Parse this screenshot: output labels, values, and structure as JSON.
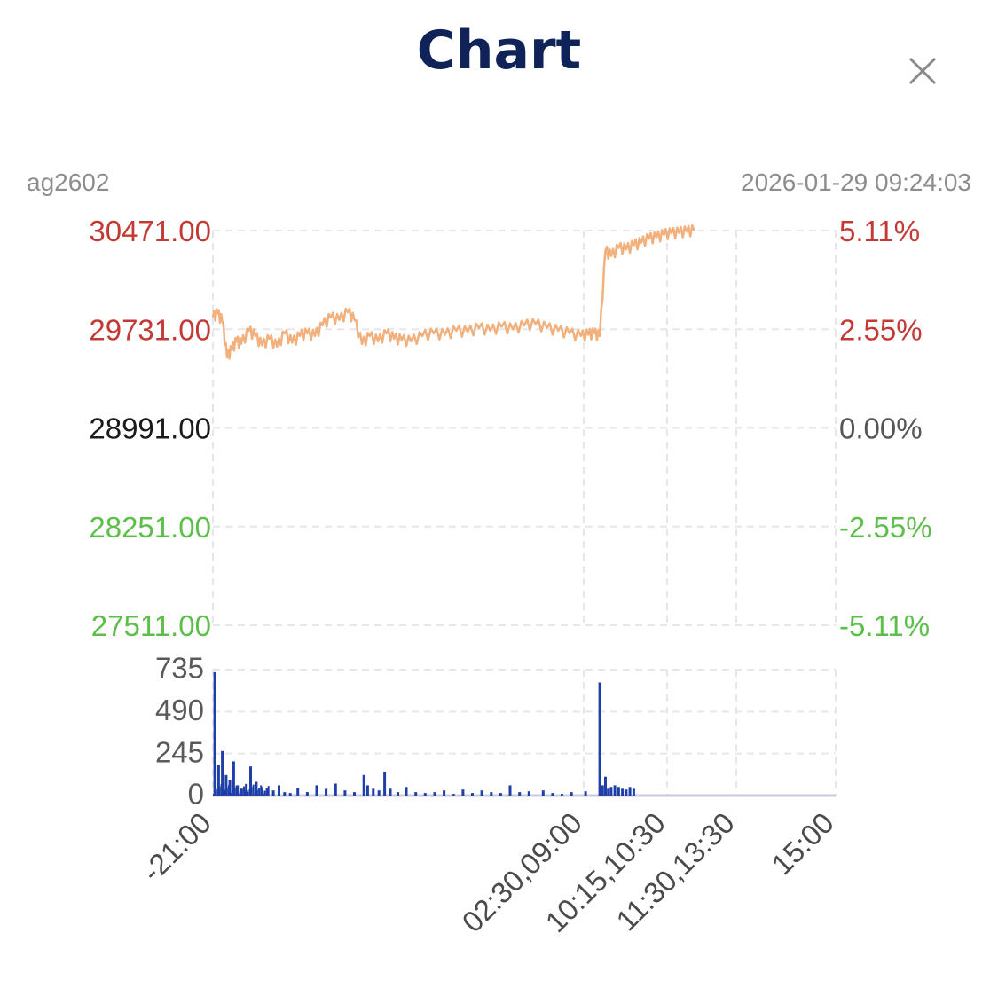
{
  "header": {
    "title": "Chart",
    "close_icon": "close-icon"
  },
  "info": {
    "symbol": "ag2602",
    "timestamp": "2026-01-29 09:24:03"
  },
  "colors": {
    "up": "#c33a34",
    "down": "#5cbf4a",
    "neutral": "#1a1a1a",
    "price_line": "#f2b07c",
    "volume": "#1f3fa8",
    "grid": "#e6e6ef"
  },
  "chart_data": {
    "type": "line",
    "price_axis_labels": [
      "30471.00",
      "29731.00",
      "28991.00",
      "28251.00",
      "27511.00"
    ],
    "percent_axis_labels": [
      "5.11%",
      "2.55%",
      "0.00%",
      "-2.55%",
      "-5.11%"
    ],
    "price_axis_colors": [
      "up",
      "up",
      "neutral",
      "down",
      "down"
    ],
    "ylim": [
      27511,
      30471
    ],
    "reference_price": 28991,
    "volume_axis_labels": [
      "735",
      "490",
      "245",
      "0"
    ],
    "volume_ylim": [
      0,
      735
    ],
    "x_tick_labels": [
      "-21:00",
      "02:30,09:00",
      "10:15,10:30",
      "11:30,13:30",
      "15:00"
    ],
    "price_series": {
      "x": [
        0,
        5,
        10,
        15,
        20,
        25,
        30,
        38,
        45,
        52,
        60,
        68,
        76,
        84,
        92,
        100,
        108,
        116,
        125,
        134,
        143,
        150,
        158,
        166,
        175,
        184,
        192,
        200,
        210,
        222,
        234,
        246,
        258,
        270,
        282,
        294,
        306,
        318,
        330,
        342,
        354,
        366,
        378,
        390,
        398,
        404,
        410,
        416,
        422,
        430,
        438,
        446,
        454,
        462,
        470,
        478,
        486,
        494,
        502,
        510,
        520,
        530,
        540,
        550,
        560,
        570,
        580,
        590,
        600,
        610,
        620,
        630,
        640,
        650,
        660
      ],
      "values": [
        29820,
        29850,
        29790,
        29520,
        29580,
        29640,
        29620,
        29720,
        29680,
        29610,
        29660,
        29600,
        29700,
        29630,
        29680,
        29700,
        29680,
        29760,
        29820,
        29800,
        29860,
        29800,
        29620,
        29680,
        29640,
        29700,
        29660,
        29650,
        29640,
        29680,
        29700,
        29690,
        29720,
        29710,
        29740,
        29720,
        29750,
        29730,
        29760,
        29770,
        29740,
        29720,
        29700,
        29680,
        29690,
        29700,
        29680,
        30320,
        30280,
        30340,
        30330,
        30360,
        30380,
        30410,
        30420,
        30440,
        30450,
        30455,
        30465,
        30471,
        null,
        null,
        null,
        null,
        null,
        null,
        null,
        null,
        null,
        null,
        null,
        null,
        null,
        null,
        null
      ]
    },
    "volume_series": {
      "x": [
        2,
        6,
        10,
        14,
        18,
        22,
        26,
        30,
        35,
        40,
        46,
        52,
        58,
        64,
        70,
        76,
        82,
        90,
        100,
        110,
        120,
        130,
        140,
        150,
        160,
        164,
        170,
        176,
        182,
        188,
        196,
        205,
        215,
        225,
        235,
        245,
        255,
        265,
        275,
        285,
        295,
        305,
        315,
        325,
        335,
        350,
        360,
        370,
        380,
        395,
        410,
        413,
        416,
        419,
        422,
        426,
        430,
        434,
        438,
        442,
        446
      ],
      "values": [
        720,
        180,
        260,
        120,
        90,
        200,
        60,
        40,
        30,
        170,
        80,
        50,
        40,
        30,
        60,
        20,
        15,
        45,
        20,
        60,
        40,
        70,
        30,
        20,
        120,
        60,
        40,
        30,
        140,
        40,
        20,
        50,
        20,
        15,
        20,
        30,
        10,
        35,
        15,
        30,
        20,
        15,
        60,
        20,
        25,
        30,
        15,
        10,
        20,
        25,
        660,
        60,
        110,
        40,
        50,
        60,
        50,
        40,
        35,
        50,
        40
      ]
    }
  }
}
